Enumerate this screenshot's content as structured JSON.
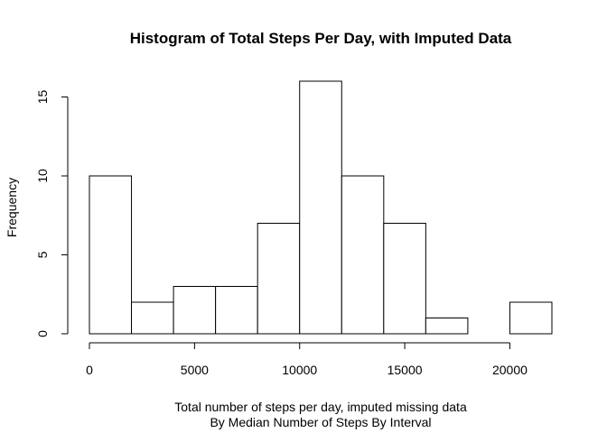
{
  "chart_data": {
    "type": "bar",
    "title": "Histogram of Total Steps Per Day, with Imputed Data",
    "xlabel": "Total number of steps per day, imputed missing data",
    "xlabel_line2": "By Median Number of Steps By Interval",
    "ylabel": "Frequency",
    "bin_edges": [
      0,
      2000,
      4000,
      6000,
      8000,
      10000,
      12000,
      14000,
      16000,
      18000,
      20000,
      22000
    ],
    "values": [
      10,
      2,
      3,
      3,
      7,
      16,
      10,
      7,
      1,
      0,
      2
    ],
    "xlim": [
      0,
      22000
    ],
    "ylim": [
      0,
      16
    ],
    "x_ticks": [
      "0",
      "5000",
      "10000",
      "15000",
      "20000"
    ],
    "y_ticks": [
      "0",
      "5",
      "10",
      "15"
    ],
    "grid": false,
    "bar_fill": "#ffffff",
    "bar_stroke": "#000000"
  }
}
